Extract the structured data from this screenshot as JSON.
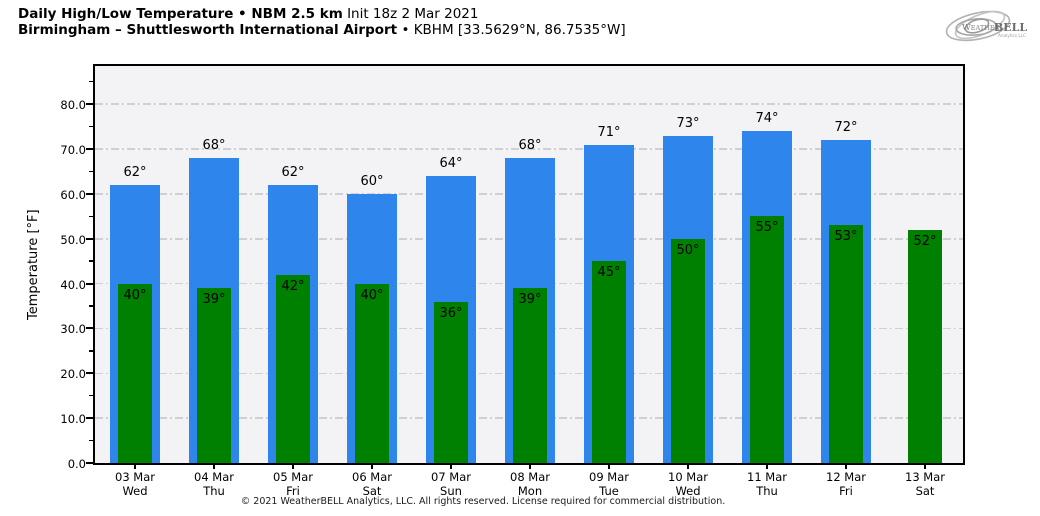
{
  "header": {
    "title_bold": "Daily High/Low Temperature • NBM 2.5 km",
    "title_init": "Init 18z 2 Mar 2021",
    "subtitle_bold": "Birmingham – Shuttlesworth International Airport",
    "subtitle_rest": "• KBHM [33.5629°N, 86.7535°W]"
  },
  "logo": {
    "part1": "Weather",
    "part2": "BELL",
    "sub": "Analytics LLC"
  },
  "footer": {
    "text": "© 2021 WeatherBELL Analytics, LLC. All rights reserved. License required for commercial distribution."
  },
  "chart_data": {
    "type": "bar",
    "title": "Daily High/Low Temperature • NBM 2.5 km — Birmingham (KBHM)",
    "ylabel": "Temperature [°F]",
    "xlabel": "",
    "ylim": [
      0,
      88.5
    ],
    "yticks": [
      0,
      10,
      20,
      30,
      40,
      50,
      60,
      70,
      80
    ],
    "ytick_labels": [
      "0.0",
      "10.0",
      "20.0",
      "30.0",
      "40.0",
      "50.0",
      "60.0",
      "70.0",
      "80.0"
    ],
    "minor_ytick_step": 5,
    "grid": "horizontal dash-dot",
    "legend_position": "none",
    "categories": [
      "03 Mar",
      "04 Mar",
      "05 Mar",
      "06 Mar",
      "07 Mar",
      "08 Mar",
      "09 Mar",
      "10 Mar",
      "11 Mar",
      "12 Mar",
      "13 Mar"
    ],
    "category_days": [
      "Wed",
      "Thu",
      "Fri",
      "Sat",
      "Sun",
      "Mon",
      "Tue",
      "Wed",
      "Thu",
      "Fri",
      "Sat"
    ],
    "series": [
      {
        "name": "High",
        "color": "#2e85ec",
        "values": [
          62,
          68,
          62,
          60,
          64,
          68,
          71,
          73,
          74,
          72,
          null
        ]
      },
      {
        "name": "Low",
        "color": "#008000",
        "values": [
          40,
          39,
          42,
          40,
          36,
          39,
          45,
          50,
          55,
          53,
          52
        ]
      }
    ],
    "data_label_suffix": "°"
  },
  "colors": {
    "high_bar": "#2e85ec",
    "low_bar": "#008000",
    "plot_bg": "#f3f3f5",
    "gridline": "#d0d0d4",
    "frame": "#000000"
  }
}
